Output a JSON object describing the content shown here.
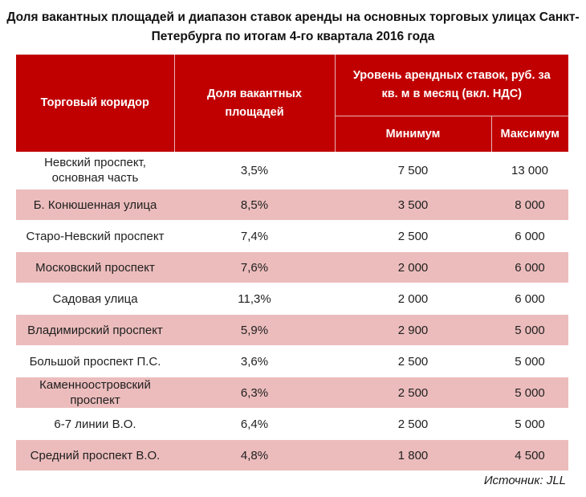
{
  "title": {
    "line1": "Доля вакантных площадей и диапазон ставок аренды на основных торговых улицах Санкт-",
    "line2": "Петербурга по итогам 4-го квартала 2016 года"
  },
  "table": {
    "headers": {
      "corridor": "Торговый коридор",
      "vacancy": "Доля вакантных площадей",
      "rent_group_line1": "Уровень арендных ставок, руб. за",
      "rent_group_line2": "кв. м в месяц (вкл. НДС)",
      "min": "Минимум",
      "max": "Максимум"
    },
    "rows": [
      {
        "corridor_line1": "Невский проспект,",
        "corridor_line2": "основная часть",
        "vacancy": "3,5%",
        "min": "7 500",
        "max": "13 000"
      },
      {
        "corridor_line1": "Б. Конюшенная улица",
        "corridor_line2": "",
        "vacancy": "8,5%",
        "min": "3 500",
        "max": "8 000"
      },
      {
        "corridor_line1": "Старо-Невский проспект",
        "corridor_line2": "",
        "vacancy": "7,4%",
        "min": "2 500",
        "max": "6 000"
      },
      {
        "corridor_line1": "Московский проспект",
        "corridor_line2": "",
        "vacancy": "7,6%",
        "min": "2 000",
        "max": "6 000"
      },
      {
        "corridor_line1": "Садовая улица",
        "corridor_line2": "",
        "vacancy": "11,3%",
        "min": "2 000",
        "max": "6 000"
      },
      {
        "corridor_line1": "Владимирский проспект",
        "corridor_line2": "",
        "vacancy": "5,9%",
        "min": "2 900",
        "max": "5 000"
      },
      {
        "corridor_line1": "Большой проспект П.С.",
        "corridor_line2": "",
        "vacancy": "3,6%",
        "min": "2 500",
        "max": "5 000"
      },
      {
        "corridor_line1": "Каменноостровский",
        "corridor_line2": "проспект",
        "vacancy": "6,3%",
        "min": "2 500",
        "max": "5 000"
      },
      {
        "corridor_line1": "6-7 линии В.О.",
        "corridor_line2": "",
        "vacancy": "6,4%",
        "min": "2 500",
        "max": "5 000"
      },
      {
        "corridor_line1": "Средний проспект В.О.",
        "corridor_line2": "",
        "vacancy": "4,8%",
        "min": "1 800",
        "max": "4 500"
      }
    ]
  },
  "source": "Источник: JLL",
  "colors": {
    "header_bg": "#c00000",
    "header_text": "#ffffff",
    "alt_row_bg": "#ecbcbc",
    "row_bg": "#ffffff"
  }
}
